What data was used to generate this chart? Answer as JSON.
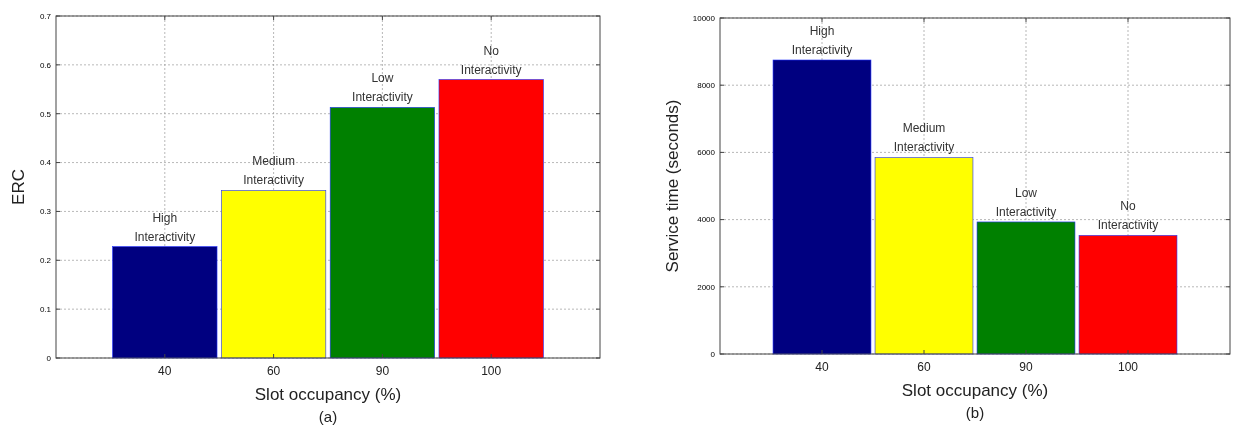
{
  "chart_data": [
    {
      "type": "bar",
      "categories": [
        "40",
        "60",
        "90",
        "100"
      ],
      "values": [
        0.228,
        0.343,
        0.513,
        0.57
      ],
      "colors": [
        "#000080",
        "#ffff00",
        "#008000",
        "#ff0000"
      ],
      "xlabel": "Slot occupancy (%)",
      "ylabel": "ERC",
      "ylim": [
        0,
        0.7
      ],
      "yticks": [
        0,
        0.1,
        0.2,
        0.3,
        0.4,
        0.5,
        0.6,
        0.7
      ],
      "grid": true,
      "annotations": [
        {
          "text": "High\nInteractivity",
          "x": "40",
          "y": 0.228
        },
        {
          "text": "Medium\nInteractivity",
          "x": "60",
          "y": 0.343
        },
        {
          "text": "Low\nInteractivity",
          "x": "90",
          "y": 0.513
        },
        {
          "text": "No\nInteractivity",
          "x": "100",
          "y": 0.57
        },
        "(a)"
      ]
    },
    {
      "type": "bar",
      "categories": [
        "40",
        "60",
        "90",
        "100"
      ],
      "values": [
        8750,
        5850,
        3930,
        3530
      ],
      "colors": [
        "#000080",
        "#ffff00",
        "#008000",
        "#ff0000"
      ],
      "xlabel": "Slot occupancy (%)",
      "ylabel": "Service time (seconds)",
      "ylim": [
        0,
        10000
      ],
      "yticks": [
        0,
        2000,
        4000,
        6000,
        8000,
        10000
      ],
      "grid": true,
      "annotations": [
        {
          "text": "High\nInteractivity",
          "x": "40",
          "y": 8750
        },
        {
          "text": "Medium\nInteractivity",
          "x": "60",
          "y": 5850
        },
        {
          "text": "Low\nInteractivity",
          "x": "90",
          "y": 3930
        },
        {
          "text": "No\nInteractivity",
          "x": "100",
          "y": 3530
        },
        "(b)"
      ]
    }
  ]
}
